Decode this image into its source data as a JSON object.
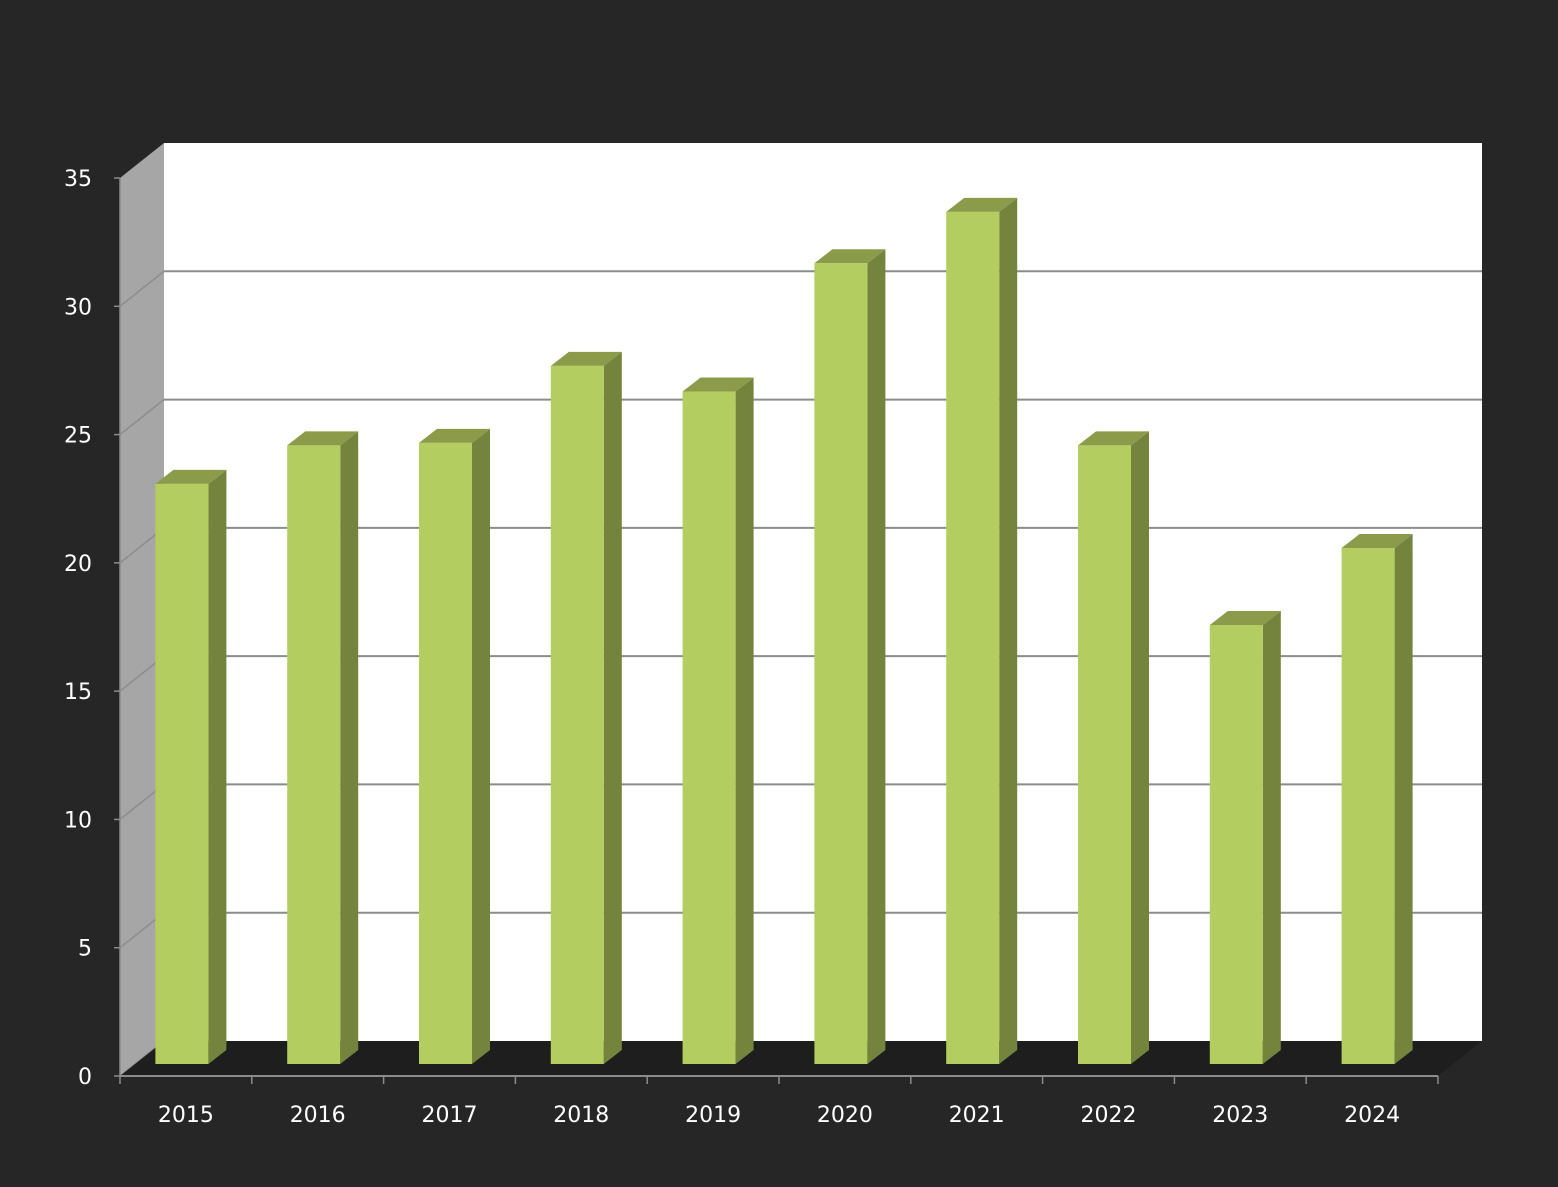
{
  "chart_data": {
    "type": "bar",
    "title": "",
    "xlabel": "",
    "ylabel": "",
    "categories": [
      "2015",
      "2016",
      "2017",
      "2018",
      "2019",
      "2020",
      "2021",
      "2022",
      "2023",
      "2024"
    ],
    "values": [
      22.6,
      24.1,
      24.2,
      27.2,
      26.2,
      31.2,
      33.2,
      24.1,
      17.1,
      20.1
    ],
    "ylim": [
      0,
      35
    ],
    "yticks": [
      "0",
      "5",
      "10",
      "15",
      "20",
      "25",
      "30",
      "35"
    ],
    "grid": true,
    "legend": "none",
    "three_d": true,
    "colors": {
      "background": "#262626",
      "plot_back_wall": "#ffffff",
      "side_wall": "#a6a6a6",
      "floor": "#1e1e1e",
      "gridline": "#8c8c8c",
      "bar_front": "#b3cd61",
      "bar_side": "#75843d",
      "bar_top": "#8b9b49",
      "text": "#ffffff"
    }
  }
}
